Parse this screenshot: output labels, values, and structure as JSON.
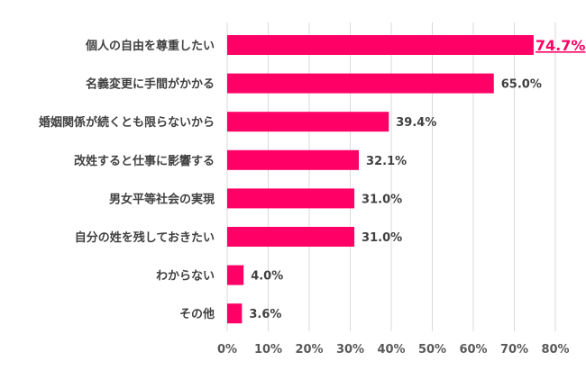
{
  "chart_data": {
    "type": "bar",
    "orientation": "horizontal",
    "categories": [
      "個人の自由を尊重したい",
      "名義変更に手間がかかる",
      "婚姻関係が続くとも限らないから",
      "改姓すると仕事に影響する",
      "男女平等社会の実現",
      "自分の姓を残しておきたい",
      "わからない",
      "その他"
    ],
    "values": [
      74.7,
      65.0,
      39.4,
      32.1,
      31.0,
      31.0,
      4.0,
      3.6
    ],
    "value_labels": [
      "74.7%",
      "65.0%",
      "39.4%",
      "32.1%",
      "31.0%",
      "31.0%",
      "4.0%",
      "3.6%"
    ],
    "highlight_index": 0,
    "xlim": [
      0,
      80
    ],
    "xticks": [
      0,
      10,
      20,
      30,
      40,
      50,
      60,
      70,
      80
    ],
    "xtick_labels": [
      "0%",
      "10%",
      "20%",
      "30%",
      "40%",
      "50%",
      "60%",
      "70%",
      "80%"
    ],
    "grid": "vertical",
    "bar_color": "#ff0066",
    "highlight_label_color": "#ff0066",
    "title": "",
    "xlabel": "",
    "ylabel": ""
  }
}
